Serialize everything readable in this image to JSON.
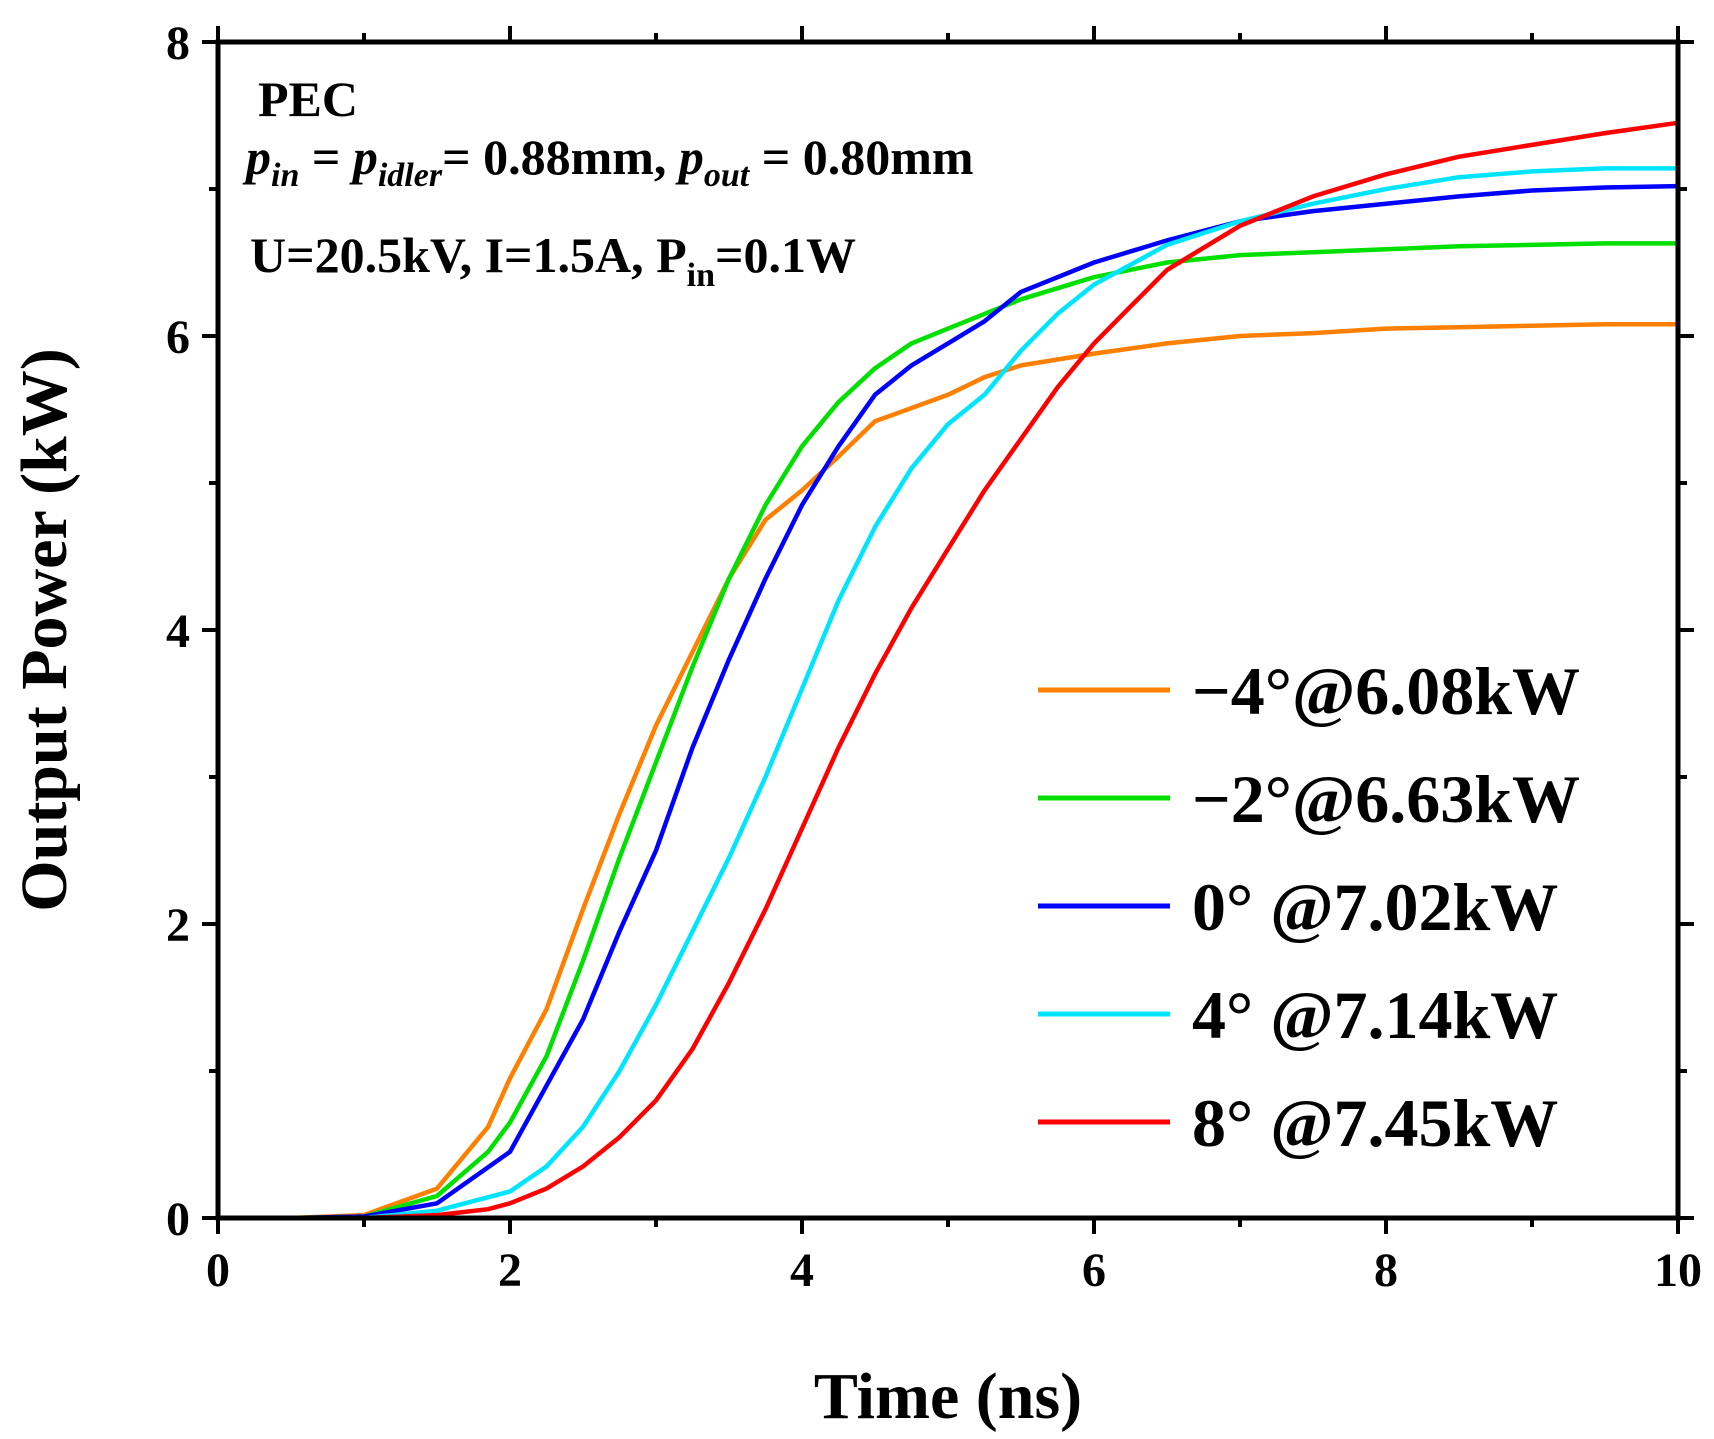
{
  "chart_data": {
    "type": "line",
    "xlabel": "Time (ns)",
    "ylabel": "Output Power (kW)",
    "xlim": [
      0,
      10
    ],
    "ylim": [
      0,
      8
    ],
    "x_ticks": [
      0,
      2,
      4,
      6,
      8,
      10
    ],
    "y_ticks": [
      0,
      2,
      4,
      6,
      8
    ],
    "x_tick_labels": [
      "0",
      "2",
      "4",
      "6",
      "8",
      "10"
    ],
    "y_tick_labels": [
      "0",
      "2",
      "4",
      "6",
      "8"
    ],
    "annotations": {
      "line1": "PEC",
      "line2": {
        "p1": "p",
        "p1_sub": "in",
        "eq1": " = ",
        "p2": "p",
        "p2_sub": "idler",
        "val1": "= 0.88mm, ",
        "p3": "p",
        "p3_sub": "out",
        "val2": " = 0.80mm"
      },
      "line3": {
        "main": "U=20.5kV, I=1.5A, P",
        "sub": "in",
        "tail": "=0.1W"
      }
    },
    "legend_position": "lower-right",
    "series": [
      {
        "name": "−4°@6.08kW",
        "color": "#ff8000",
        "x": [
          0,
          0.5,
          1.0,
          1.5,
          1.85,
          2.0,
          2.25,
          2.5,
          2.75,
          3.0,
          3.25,
          3.5,
          3.75,
          4.0,
          4.25,
          4.5,
          5.0,
          5.25,
          5.5,
          6.0,
          6.5,
          7.0,
          7.5,
          8.0,
          8.5,
          9.0,
          9.5,
          10.0
        ],
        "y": [
          0,
          0,
          0.02,
          0.2,
          0.62,
          0.95,
          1.42,
          2.1,
          2.75,
          3.35,
          3.85,
          4.35,
          4.75,
          4.95,
          5.18,
          5.42,
          5.6,
          5.72,
          5.8,
          5.88,
          5.95,
          6.0,
          6.02,
          6.05,
          6.06,
          6.07,
          6.08,
          6.08
        ]
      },
      {
        "name": "−2°@6.63kW",
        "color": "#00e000",
        "x": [
          0,
          0.5,
          1.0,
          1.5,
          1.85,
          2.0,
          2.25,
          2.5,
          2.75,
          3.0,
          3.25,
          3.5,
          3.75,
          4.0,
          4.25,
          4.5,
          4.75,
          5.0,
          5.25,
          5.5,
          6.0,
          6.5,
          7.0,
          7.5,
          8.0,
          8.5,
          9.0,
          9.5,
          10.0
        ],
        "y": [
          0,
          0,
          0.01,
          0.15,
          0.45,
          0.65,
          1.1,
          1.75,
          2.45,
          3.1,
          3.75,
          4.35,
          4.85,
          5.25,
          5.55,
          5.78,
          5.95,
          6.05,
          6.15,
          6.25,
          6.4,
          6.5,
          6.55,
          6.57,
          6.59,
          6.61,
          6.62,
          6.63,
          6.63
        ]
      },
      {
        "name": "0° @7.02kW",
        "color": "#0000ff",
        "x": [
          0,
          0.5,
          1.0,
          1.5,
          2.0,
          2.25,
          2.5,
          2.75,
          3.0,
          3.25,
          3.5,
          3.75,
          4.0,
          4.25,
          4.5,
          4.75,
          5.0,
          5.25,
          5.5,
          6.0,
          6.5,
          7.0,
          7.5,
          8.0,
          8.5,
          9.0,
          9.5,
          10.0
        ],
        "y": [
          0,
          0,
          0.01,
          0.1,
          0.45,
          0.9,
          1.35,
          1.95,
          2.5,
          3.2,
          3.8,
          4.35,
          4.85,
          5.25,
          5.6,
          5.8,
          5.95,
          6.1,
          6.3,
          6.5,
          6.65,
          6.78,
          6.85,
          6.9,
          6.95,
          6.99,
          7.01,
          7.02
        ]
      },
      {
        "name": "4° @7.14kW",
        "color": "#00e5ff",
        "x": [
          0,
          0.5,
          1.0,
          1.5,
          2.0,
          2.25,
          2.5,
          2.75,
          3.0,
          3.25,
          3.5,
          3.75,
          4.0,
          4.25,
          4.5,
          4.75,
          5.0,
          5.25,
          5.5,
          5.75,
          6.0,
          6.5,
          7.0,
          7.5,
          8.0,
          8.5,
          9.0,
          9.5,
          10.0
        ],
        "y": [
          0,
          0,
          0,
          0.05,
          0.18,
          0.35,
          0.62,
          1.0,
          1.45,
          1.95,
          2.45,
          3.0,
          3.6,
          4.2,
          4.7,
          5.1,
          5.4,
          5.6,
          5.9,
          6.15,
          6.35,
          6.62,
          6.78,
          6.9,
          7.0,
          7.08,
          7.12,
          7.14,
          7.14
        ]
      },
      {
        "name": "8° @7.45kW",
        "color": "#ff0000",
        "x": [
          0,
          0.5,
          1.0,
          1.5,
          1.85,
          2.0,
          2.25,
          2.5,
          2.75,
          3.0,
          3.25,
          3.5,
          3.75,
          4.0,
          4.25,
          4.5,
          4.75,
          5.0,
          5.25,
          5.5,
          5.75,
          6.0,
          6.25,
          6.5,
          7.0,
          7.5,
          8.0,
          8.5,
          9.0,
          9.5,
          10.0
        ],
        "y": [
          0,
          0,
          0,
          0.02,
          0.06,
          0.1,
          0.2,
          0.35,
          0.55,
          0.8,
          1.15,
          1.6,
          2.1,
          2.65,
          3.2,
          3.7,
          4.15,
          4.55,
          4.95,
          5.3,
          5.65,
          5.95,
          6.2,
          6.45,
          6.75,
          6.95,
          7.1,
          7.22,
          7.3,
          7.38,
          7.45
        ]
      }
    ]
  }
}
